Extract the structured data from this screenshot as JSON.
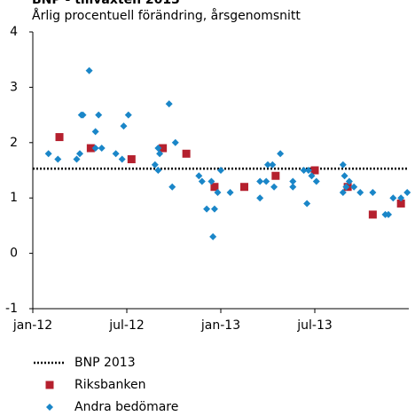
{
  "chart_data": {
    "type": "scatter",
    "title": "BNP - tillväxten 2013",
    "subtitle": "Årlig procentuell förändring, årsgenomsnitt",
    "xlim": [
      0,
      24
    ],
    "xticks": [
      {
        "value": 0,
        "label": "jan-12"
      },
      {
        "value": 6,
        "label": "jul-12"
      },
      {
        "value": 12,
        "label": "jan-13"
      },
      {
        "value": 18,
        "label": "jul-13"
      }
    ],
    "ylim": [
      -1,
      4
    ],
    "yticks": [
      -1,
      0,
      1,
      2,
      3,
      4
    ],
    "grid": false,
    "reference_lines": [
      {
        "name": "BNP 2013",
        "value": 1.53,
        "color": "#000000"
      }
    ],
    "series": [
      {
        "name": "Riksbanken",
        "color": "#b5202e",
        "marker": "square",
        "x": [
          1.7,
          3.7,
          6.3,
          8.3,
          9.8,
          11.6,
          13.5,
          15.5,
          18.0,
          20.1,
          21.7,
          23.5
        ],
        "values": [
          2.1,
          1.9,
          1.7,
          1.9,
          1.8,
          1.2,
          1.2,
          1.4,
          1.5,
          1.2,
          0.7,
          0.9
        ]
      },
      {
        "name": "Andra bedömare",
        "color": "#1a86c8",
        "marker": "diamond",
        "x": [
          1.0,
          1.6,
          2.8,
          3.0,
          3.1,
          3.2,
          3.6,
          4.0,
          4.0,
          4.2,
          4.4,
          5.3,
          5.7,
          5.8,
          6.1,
          7.8,
          8.0,
          8.0,
          8.1,
          8.7,
          8.9,
          9.1,
          10.6,
          10.8,
          11.1,
          11.4,
          11.6,
          11.5,
          11.8,
          12.0,
          12.6,
          14.5,
          14.5,
          14.9,
          15.0,
          15.3,
          15.4,
          15.8,
          16.6,
          16.6,
          17.3,
          17.5,
          17.6,
          17.8,
          18.1,
          19.8,
          19.8,
          19.9,
          20.0,
          20.2,
          20.5,
          20.9,
          21.7,
          22.5,
          22.7,
          23.0,
          23.5,
          23.9
        ],
        "values": [
          1.8,
          1.7,
          1.7,
          1.8,
          2.5,
          2.5,
          3.3,
          2.2,
          1.9,
          2.5,
          1.9,
          1.8,
          1.7,
          2.3,
          2.5,
          1.6,
          1.9,
          1.5,
          1.8,
          2.7,
          1.2,
          2.0,
          1.4,
          1.3,
          0.8,
          1.3,
          0.8,
          0.3,
          1.1,
          1.5,
          1.1,
          1.0,
          1.3,
          1.3,
          1.6,
          1.6,
          1.2,
          1.8,
          1.2,
          1.3,
          1.5,
          0.9,
          1.5,
          1.4,
          1.3,
          1.6,
          1.1,
          1.4,
          1.2,
          1.3,
          1.2,
          1.1,
          1.1,
          0.7,
          0.7,
          1.0,
          1.0,
          1.1
        ]
      }
    ]
  }
}
